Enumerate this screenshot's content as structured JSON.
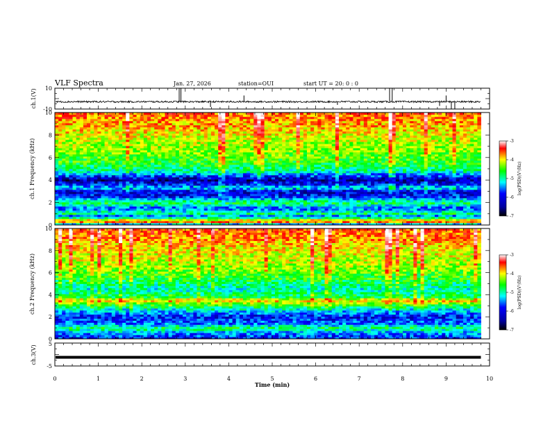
{
  "header": {
    "title": "VLF Spectra",
    "date": "Jan. 27, 2026",
    "station": "station=OUI",
    "start_time": "start UT =  20: 0  : 0"
  },
  "chart_data": [
    {
      "type": "line",
      "name": "ch1-waveform",
      "ylabel": "ch.1(V)",
      "ylim": [
        -10,
        10
      ],
      "yticks": [
        "10",
        "-10"
      ],
      "xlim": [
        0,
        10
      ],
      "baseline": -3,
      "noise_amplitude": 0.8,
      "spikes": [
        {
          "t": 2.86,
          "v": 10
        },
        {
          "t": 2.9,
          "v": 10
        },
        {
          "t": 3.58,
          "v": -8
        },
        {
          "t": 4.35,
          "v": 3
        },
        {
          "t": 6.5,
          "v": -6
        },
        {
          "t": 7.7,
          "v": 10
        },
        {
          "t": 7.76,
          "v": 10
        },
        {
          "t": 8.85,
          "v": -7
        },
        {
          "t": 9.0,
          "v": 3
        },
        {
          "t": 9.12,
          "v": -10
        },
        {
          "t": 9.2,
          "v": -10
        }
      ]
    },
    {
      "type": "heatmap",
      "name": "ch1-spectrogram",
      "ylabel": "ch.1 Frequency (kHz)",
      "ylim": [
        0,
        10
      ],
      "yticks": [
        "0",
        "2",
        "4",
        "6",
        "8",
        "10"
      ],
      "xlim": [
        0,
        9.8
      ],
      "colorbar": {
        "label": "log(PSD)(V²/Hz)",
        "range": [
          -7,
          -3
        ],
        "ticks": [
          "-3",
          "-4",
          "-5",
          "-6",
          "-7"
        ]
      },
      "profile": [
        {
          "f": 0.0,
          "v": -6.6
        },
        {
          "f": 0.2,
          "v": -5.0
        },
        {
          "f": 0.35,
          "v": -3.4
        },
        {
          "f": 0.5,
          "v": -5.0
        },
        {
          "f": 0.8,
          "v": -6.2
        },
        {
          "f": 1.0,
          "v": -5.4
        },
        {
          "f": 1.5,
          "v": -6.3
        },
        {
          "f": 2.0,
          "v": -5.3
        },
        {
          "f": 2.5,
          "v": -6.4
        },
        {
          "f": 3.0,
          "v": -6.7
        },
        {
          "f": 3.3,
          "v": -5.8
        },
        {
          "f": 3.6,
          "v": -6.4
        },
        {
          "f": 4.0,
          "v": -6.9
        },
        {
          "f": 4.4,
          "v": -6.3
        },
        {
          "f": 4.8,
          "v": -5.6
        },
        {
          "f": 5.5,
          "v": -5.2
        },
        {
          "f": 6.5,
          "v": -4.9
        },
        {
          "f": 7.5,
          "v": -4.7
        },
        {
          "f": 8.5,
          "v": -4.4
        },
        {
          "f": 9.3,
          "v": -4.2
        },
        {
          "f": 10.0,
          "v": -4.0
        }
      ]
    },
    {
      "type": "heatmap",
      "name": "ch2-spectrogram",
      "ylabel": "ch.2 Frequency (kHz)",
      "ylim": [
        0,
        10
      ],
      "yticks": [
        "0",
        "2",
        "4",
        "6",
        "8",
        "10"
      ],
      "xlim": [
        0,
        9.8
      ],
      "colorbar": {
        "label": "log(PSD)(V²/Hz)",
        "range": [
          -7,
          -3
        ],
        "ticks": [
          "-3",
          "-4",
          "-5",
          "-6",
          "-7"
        ]
      },
      "profile": [
        {
          "f": 0.0,
          "v": -6.5
        },
        {
          "f": 0.3,
          "v": -6.3
        },
        {
          "f": 0.6,
          "v": -6.0
        },
        {
          "f": 1.0,
          "v": -5.4
        },
        {
          "f": 1.4,
          "v": -6.2
        },
        {
          "f": 2.0,
          "v": -6.5
        },
        {
          "f": 2.4,
          "v": -6.1
        },
        {
          "f": 2.8,
          "v": -5.6
        },
        {
          "f": 3.2,
          "v": -4.9
        },
        {
          "f": 3.5,
          "v": -4.3
        },
        {
          "f": 3.8,
          "v": -5.3
        },
        {
          "f": 4.5,
          "v": -5.7
        },
        {
          "f": 5.5,
          "v": -5.2
        },
        {
          "f": 6.5,
          "v": -4.8
        },
        {
          "f": 7.5,
          "v": -4.6
        },
        {
          "f": 8.5,
          "v": -4.4
        },
        {
          "f": 9.3,
          "v": -4.1
        },
        {
          "f": 10.0,
          "v": -4.0
        }
      ]
    },
    {
      "type": "line",
      "name": "ch3-waveform",
      "ylabel": "ch.3(V)",
      "ylim": [
        -5,
        5
      ],
      "yticks": [
        "5",
        "-5"
      ],
      "xlim": [
        0,
        10
      ],
      "baseline": -1.2
    }
  ],
  "xaxis": {
    "label": "Time (min)",
    "ticks": [
      "0",
      "1",
      "2",
      "3",
      "4",
      "5",
      "6",
      "7",
      "8",
      "9",
      "10"
    ]
  },
  "colors": {
    "colormap": [
      "#000080",
      "#0000ff",
      "#00ffff",
      "#00ff00",
      "#ffff00",
      "#ff0000",
      "#ffffff"
    ]
  }
}
